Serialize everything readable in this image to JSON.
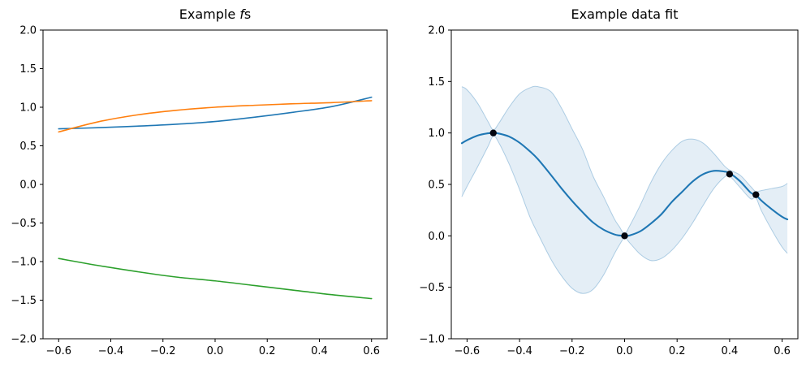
{
  "figure": {
    "background": "#ffffff",
    "frame_color": "#000000"
  },
  "chart_data": [
    {
      "type": "line",
      "title": "Example fs",
      "title_parts": {
        "prefix": "Example ",
        "math": "f",
        "suffix": "s"
      },
      "xlabel": "",
      "ylabel": "",
      "xlim": [
        -0.66,
        0.66
      ],
      "ylim": [
        -2.0,
        2.0
      ],
      "grid": false,
      "legend": null,
      "xtick_values": [
        -0.6,
        -0.4,
        -0.2,
        0.0,
        0.2,
        0.4,
        0.6
      ],
      "xtick_labels": [
        "−0.6",
        "−0.4",
        "−0.2",
        "0.0",
        "0.2",
        "0.4",
        "0.6"
      ],
      "ytick_values": [
        -2.0,
        -1.5,
        -1.0,
        -0.5,
        0.0,
        0.5,
        1.0,
        1.5,
        2.0
      ],
      "ytick_labels": [
        "−2.0",
        "−1.5",
        "−1.0",
        "−0.5",
        "0.0",
        "0.5",
        "1.0",
        "1.5",
        "2.0"
      ],
      "x": [
        -0.6,
        -0.45,
        -0.3,
        -0.15,
        0.0,
        0.15,
        0.3,
        0.45,
        0.6
      ],
      "series": [
        {
          "name": "f1",
          "color": "#1f77b4",
          "width": 1.6,
          "values": [
            0.72,
            0.735,
            0.755,
            0.78,
            0.815,
            0.87,
            0.935,
            1.01,
            1.13
          ]
        },
        {
          "name": "f2",
          "color": "#ff7f0e",
          "width": 1.6,
          "values": [
            0.68,
            0.81,
            0.9,
            0.96,
            1.0,
            1.025,
            1.045,
            1.06,
            1.085
          ]
        },
        {
          "name": "f3",
          "color": "#2ca02c",
          "width": 1.6,
          "values": [
            -0.96,
            -1.05,
            -1.13,
            -1.2,
            -1.25,
            -1.31,
            -1.37,
            -1.43,
            -1.48
          ]
        }
      ]
    },
    {
      "type": "line",
      "title": "Example data fit",
      "xlabel": "",
      "ylabel": "",
      "xlim": [
        -0.66,
        0.66
      ],
      "ylim": [
        -1.0,
        2.0
      ],
      "grid": false,
      "legend": null,
      "xtick_values": [
        -0.6,
        -0.4,
        -0.2,
        0.0,
        0.2,
        0.4,
        0.6
      ],
      "xtick_labels": [
        "−0.6",
        "−0.4",
        "−0.2",
        "0.0",
        "0.2",
        "0.4",
        "0.6"
      ],
      "ytick_values": [
        -1.0,
        -0.5,
        0.0,
        0.5,
        1.0,
        1.5,
        2.0
      ],
      "ytick_labels": [
        "−1.0",
        "−0.5",
        "0.0",
        "0.5",
        "1.0",
        "1.5",
        "2.0"
      ],
      "x": [
        -0.62,
        -0.6,
        -0.56,
        -0.52,
        -0.5,
        -0.48,
        -0.44,
        -0.4,
        -0.36,
        -0.33,
        -0.28,
        -0.24,
        -0.2,
        -0.16,
        -0.12,
        -0.08,
        -0.04,
        -0.02,
        0.0,
        0.02,
        0.06,
        0.1,
        0.14,
        0.18,
        0.22,
        0.26,
        0.3,
        0.34,
        0.38,
        0.4,
        0.44,
        0.48,
        0.5,
        0.52,
        0.56,
        0.6,
        0.62
      ],
      "series": [
        {
          "name": "posterior-mean",
          "color": "#1f77b4",
          "width": 2.1,
          "values": [
            0.9,
            0.93,
            0.975,
            0.997,
            1.0,
            0.995,
            0.965,
            0.905,
            0.82,
            0.745,
            0.59,
            0.46,
            0.34,
            0.23,
            0.13,
            0.06,
            0.015,
            0.004,
            0.0,
            0.005,
            0.045,
            0.12,
            0.21,
            0.33,
            0.43,
            0.53,
            0.6,
            0.632,
            0.625,
            0.61,
            0.53,
            0.42,
            0.4,
            0.345,
            0.26,
            0.185,
            0.16
          ]
        }
      ],
      "band": {
        "name": "confidence-band",
        "fill": "rgba(31,119,180,0.12)",
        "edge": "rgba(31,119,180,0.32)",
        "upper": [
          1.45,
          1.42,
          1.29,
          1.11,
          1.03,
          1.09,
          1.25,
          1.38,
          1.44,
          1.45,
          1.4,
          1.24,
          1.04,
          0.84,
          0.58,
          0.38,
          0.17,
          0.09,
          0.02,
          0.1,
          0.3,
          0.52,
          0.7,
          0.83,
          0.92,
          0.94,
          0.9,
          0.8,
          0.68,
          0.64,
          0.59,
          0.48,
          0.43,
          0.44,
          0.46,
          0.48,
          0.51
        ],
        "lower": [
          0.38,
          0.48,
          0.67,
          0.87,
          0.97,
          0.91,
          0.7,
          0.45,
          0.18,
          0.02,
          -0.23,
          -0.39,
          -0.51,
          -0.56,
          -0.52,
          -0.38,
          -0.18,
          -0.09,
          -0.02,
          -0.07,
          -0.18,
          -0.24,
          -0.22,
          -0.14,
          -0.02,
          0.13,
          0.3,
          0.46,
          0.57,
          0.58,
          0.47,
          0.36,
          0.37,
          0.25,
          0.06,
          -0.11,
          -0.17
        ]
      },
      "scatter": {
        "name": "observations",
        "color": "#04060f",
        "radius": 4.2,
        "x": [
          -0.5,
          0.0,
          0.4,
          0.5
        ],
        "y": [
          1.0,
          0.0,
          0.6,
          0.4
        ]
      }
    }
  ]
}
